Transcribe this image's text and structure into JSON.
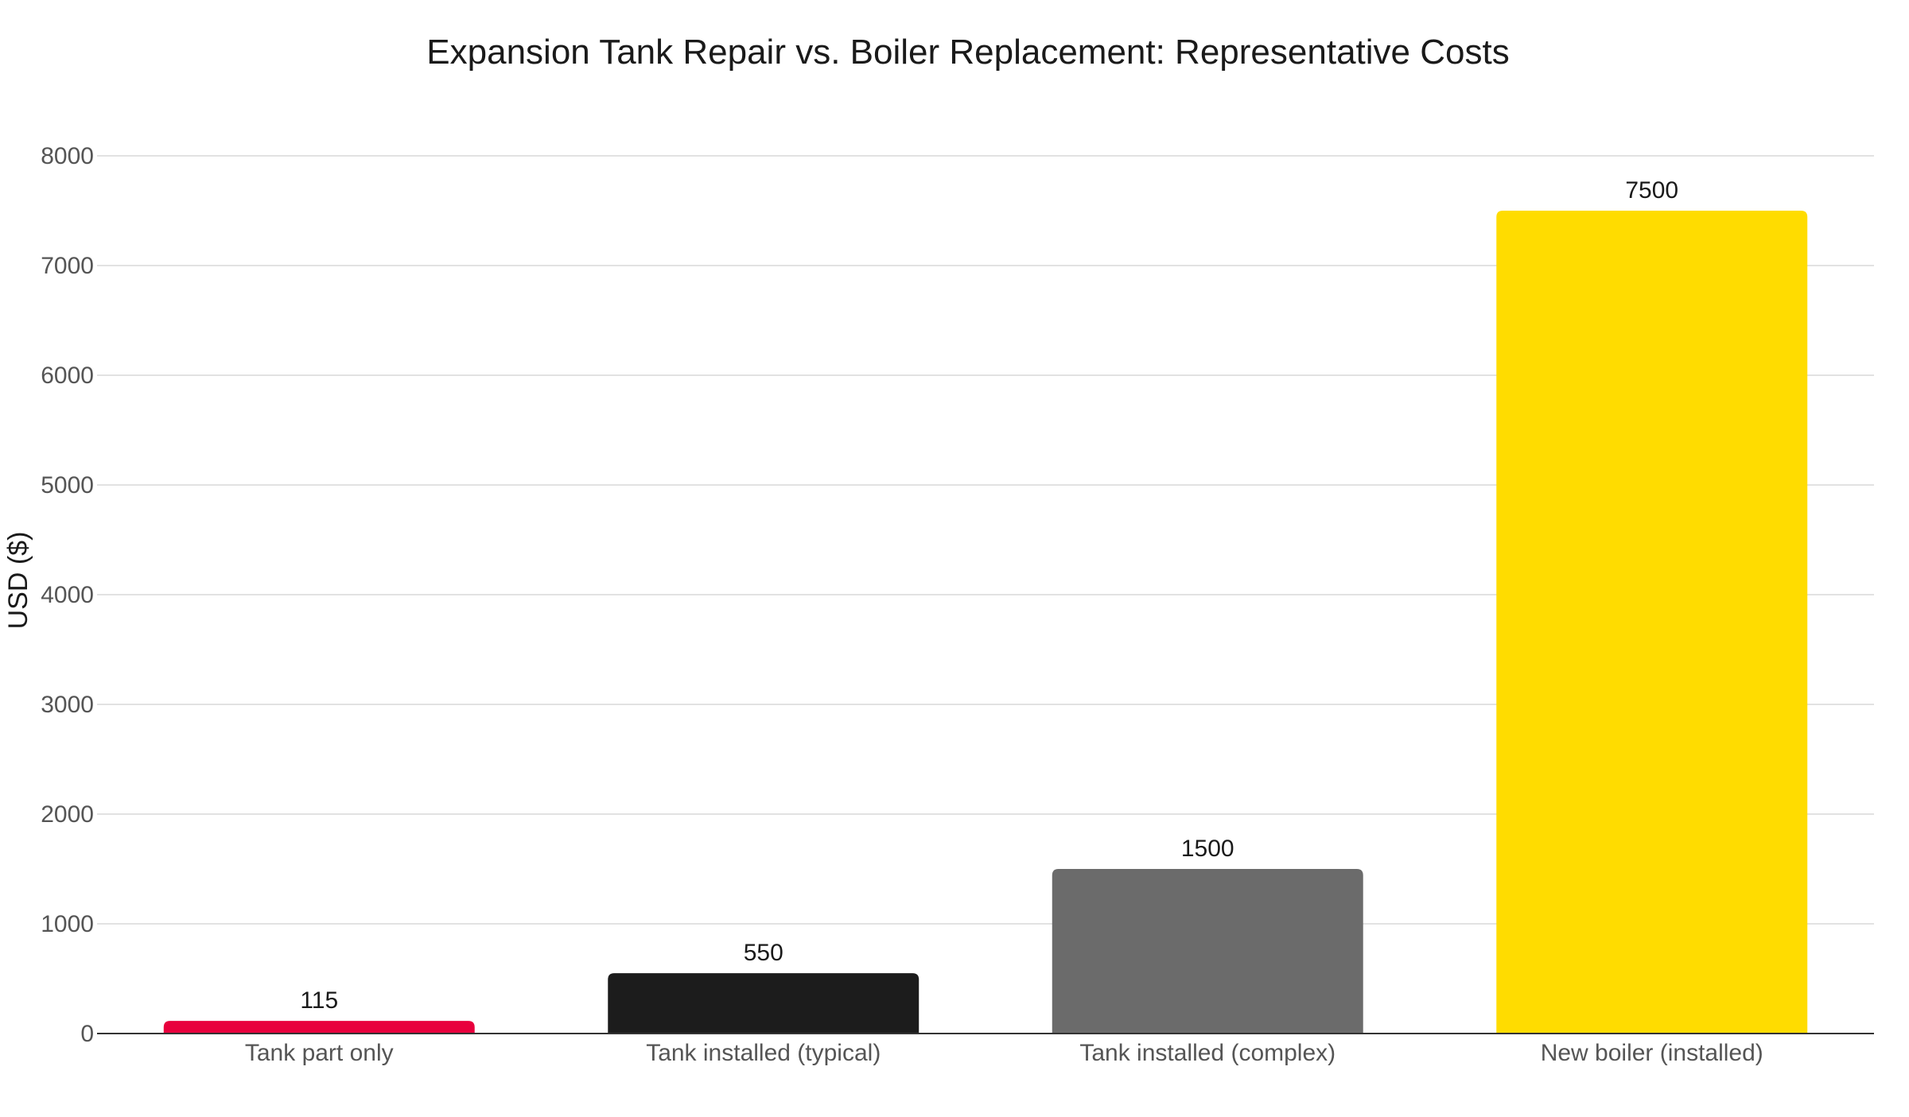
{
  "chart_data": {
    "type": "bar",
    "title": "Expansion Tank Repair vs. Boiler Replacement: Representative Costs",
    "xlabel": "",
    "ylabel": "USD ($)",
    "ylim": [
      0,
      8000
    ],
    "yticks": [
      0,
      1000,
      2000,
      3000,
      4000,
      5000,
      6000,
      7000,
      8000
    ],
    "grid": true,
    "legend": "none",
    "categories": [
      "Tank part only",
      "Tank installed (typical)",
      "Tank installed (complex)",
      "New boiler (installed)"
    ],
    "values": [
      115,
      550,
      1500,
      7500
    ],
    "colors": [
      "#E8003D",
      "#1C1C1C",
      "#6B6B6B",
      "#FFDC00"
    ]
  }
}
